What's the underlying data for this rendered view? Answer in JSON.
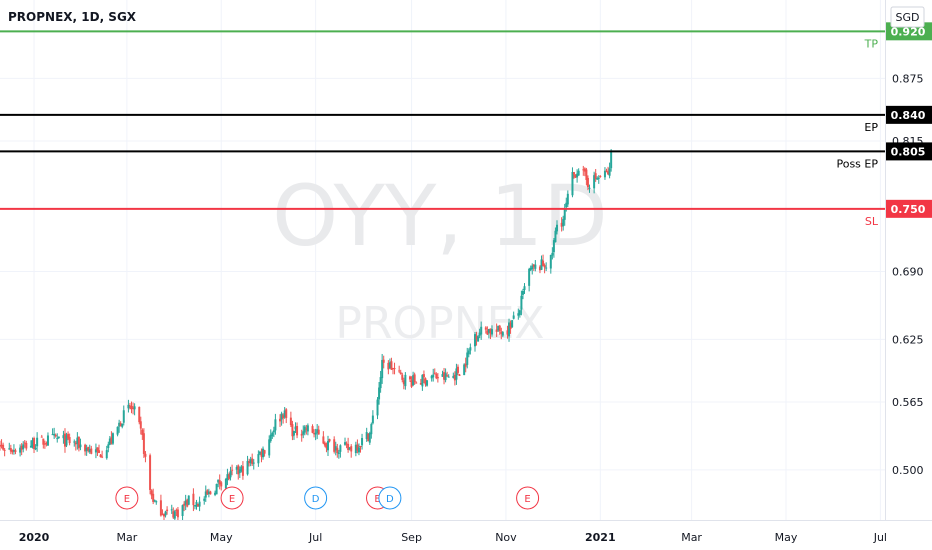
{
  "header": {
    "title": "PROPNEX, 1D, SGX",
    "currency": "SGD"
  },
  "watermark": {
    "symbol": "OYY, 1D",
    "name": "PROPNEX"
  },
  "colors": {
    "up": "#26a69a",
    "down": "#ef5350",
    "tp": "#4caf50",
    "sl": "#f23645",
    "level": "#000000",
    "event_e": "#f23645",
    "event_d": "#2196f3",
    "axis_text": "#131722"
  },
  "levels": [
    {
      "id": "tp",
      "name": "TP",
      "value": 0.92,
      "box_label": "0.920",
      "color": "#4caf50"
    },
    {
      "id": "ep",
      "name": "EP",
      "value": 0.84,
      "box_label": "0.840",
      "color": "#000000"
    },
    {
      "id": "poss-ep",
      "name": "Poss EP",
      "value": 0.805,
      "box_label": "0.805",
      "color": "#000000"
    },
    {
      "id": "sl",
      "name": "SL",
      "value": 0.75,
      "box_label": "0.750",
      "color": "#f23645"
    }
  ],
  "events": [
    {
      "type": "E",
      "date": "2020-03-01"
    },
    {
      "type": "E",
      "date": "2020-05-08"
    },
    {
      "type": "D",
      "date": "2020-07-01"
    },
    {
      "type": "E",
      "date": "2020-08-10"
    },
    {
      "type": "D",
      "date": "2020-08-18"
    },
    {
      "type": "E",
      "date": "2020-11-15"
    }
  ],
  "chart_data": {
    "type": "line",
    "title": "PROPNEX, 1D, SGX",
    "style": "candlestick",
    "currency": "SGD",
    "x_ticks": [
      "2020",
      "Mar",
      "May",
      "Jul",
      "Sep",
      "Nov",
      "2021",
      "Mar",
      "May",
      "Jul"
    ],
    "y_ticks": [
      "0.875",
      "0.815",
      "0.750",
      "0.690",
      "0.625",
      "0.565",
      "0.500"
    ],
    "ylim": [
      0.452,
      0.95
    ],
    "xlim": [
      "2019-12-10",
      "2021-07-04"
    ],
    "series": [
      {
        "values": [
          [
            "2019-12-02",
            0.525
          ],
          [
            "2019-12-16",
            0.52
          ],
          [
            "2020-01-01",
            0.525
          ],
          [
            "2020-01-15",
            0.53
          ],
          [
            "2020-01-29",
            0.525
          ],
          [
            "2020-02-12",
            0.515
          ],
          [
            "2020-02-21",
            0.53
          ],
          [
            "2020-02-27",
            0.55
          ],
          [
            "2020-03-03",
            0.56
          ],
          [
            "2020-03-06",
            0.555
          ],
          [
            "2020-03-11",
            0.53
          ],
          [
            "2020-03-16",
            0.48
          ],
          [
            "2020-03-20",
            0.465
          ],
          [
            "2020-03-27",
            0.458
          ],
          [
            "2020-04-03",
            0.46
          ],
          [
            "2020-04-10",
            0.47
          ],
          [
            "2020-04-17",
            0.468
          ],
          [
            "2020-04-24",
            0.478
          ],
          [
            "2020-05-01",
            0.49
          ],
          [
            "2020-05-08",
            0.495
          ],
          [
            "2020-05-15",
            0.5
          ],
          [
            "2020-05-22",
            0.51
          ],
          [
            "2020-05-29",
            0.52
          ],
          [
            "2020-06-05",
            0.545
          ],
          [
            "2020-06-10",
            0.555
          ],
          [
            "2020-06-17",
            0.535
          ],
          [
            "2020-06-24",
            0.54
          ],
          [
            "2020-07-01",
            0.535
          ],
          [
            "2020-07-08",
            0.525
          ],
          [
            "2020-07-15",
            0.522
          ],
          [
            "2020-07-22",
            0.52
          ],
          [
            "2020-07-29",
            0.525
          ],
          [
            "2020-08-05",
            0.535
          ],
          [
            "2020-08-10",
            0.57
          ],
          [
            "2020-08-13",
            0.6
          ],
          [
            "2020-08-18",
            0.6
          ],
          [
            "2020-08-24",
            0.59
          ],
          [
            "2020-08-31",
            0.585
          ],
          [
            "2020-09-07",
            0.585
          ],
          [
            "2020-09-14",
            0.59
          ],
          [
            "2020-09-21",
            0.588
          ],
          [
            "2020-09-28",
            0.59
          ],
          [
            "2020-10-05",
            0.6
          ],
          [
            "2020-10-12",
            0.63
          ],
          [
            "2020-10-19",
            0.635
          ],
          [
            "2020-10-26",
            0.632
          ],
          [
            "2020-11-02",
            0.635
          ],
          [
            "2020-11-09",
            0.65
          ],
          [
            "2020-11-16",
            0.69
          ],
          [
            "2020-11-23",
            0.695
          ],
          [
            "2020-11-30",
            0.7
          ],
          [
            "2020-12-04",
            0.735
          ],
          [
            "2020-12-08",
            0.74
          ],
          [
            "2020-12-14",
            0.78
          ],
          [
            "2020-12-18",
            0.79
          ],
          [
            "2020-12-24",
            0.775
          ],
          [
            "2020-12-31",
            0.78
          ],
          [
            "2021-01-07",
            0.785
          ],
          [
            "2021-01-10",
            0.84
          ]
        ]
      }
    ]
  }
}
